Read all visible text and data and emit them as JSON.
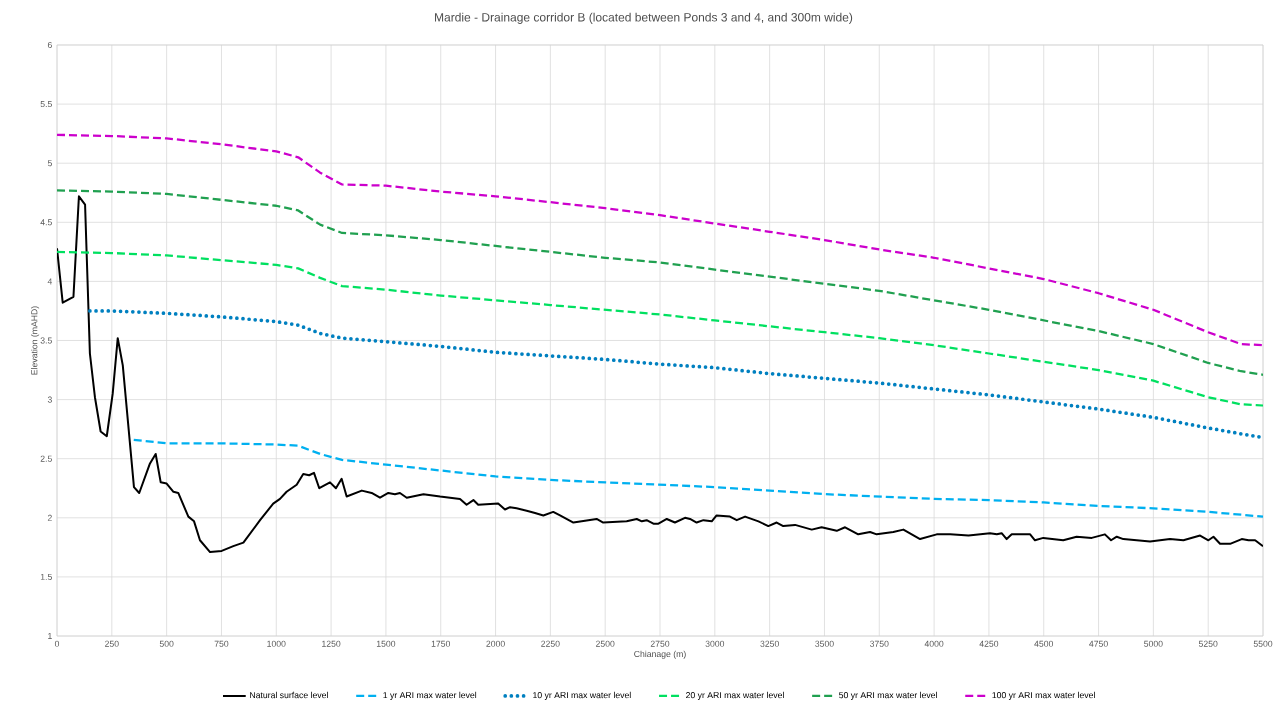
{
  "chart_data": {
    "type": "line",
    "title": "Mardie - Drainage corridor B (located between Ponds 3 and 4, and 300m wide)",
    "xlabel": "Chianage (m)",
    "ylabel": "Elevation (mAHD)",
    "xlim": [
      0,
      5500
    ],
    "ylim": [
      1,
      6
    ],
    "xticks": [
      0,
      250,
      500,
      750,
      1000,
      1250,
      1500,
      1750,
      2000,
      2250,
      2500,
      2750,
      3000,
      3250,
      3500,
      3750,
      4000,
      4250,
      4500,
      4750,
      5000,
      5250,
      5500
    ],
    "yticks": [
      1,
      1.5,
      2,
      2.5,
      3,
      3.5,
      4,
      4.5,
      5,
      5.5,
      6
    ],
    "grid": true,
    "legend": "bottom",
    "marker": "none",
    "series": [
      {
        "name": "Natural surface level",
        "color": "#000000",
        "line_style": "solid",
        "x": [
          0,
          26,
          75,
          100,
          128,
          150,
          173,
          199,
          227,
          254,
          277,
          300,
          351,
          375,
          424,
          450,
          473,
          500,
          531,
          553,
          599,
          625,
          652,
          698,
          751,
          804,
          850,
          926,
          986,
          1017,
          1047,
          1093,
          1123,
          1150,
          1172,
          1196,
          1245,
          1272,
          1298,
          1321,
          1390,
          1435,
          1473,
          1511,
          1541,
          1564,
          1595,
          1671,
          1747,
          1838,
          1868,
          1899,
          1921,
          2012,
          2043,
          2066,
          2096,
          2142,
          2180,
          2218,
          2263,
          2294,
          2355,
          2461,
          2491,
          2598,
          2644,
          2667,
          2689,
          2720,
          2743,
          2781,
          2818,
          2864,
          2887,
          2917,
          2948,
          2986,
          3008,
          3069,
          3100,
          3138,
          3199,
          3244,
          3282,
          3312,
          3366,
          3442,
          3487,
          3556,
          3594,
          3654,
          3708,
          3738,
          3814,
          3860,
          3936,
          4012,
          4073,
          4157,
          4255,
          4286,
          4308,
          4331,
          4354,
          4438,
          4460,
          4498,
          4589,
          4650,
          4719,
          4779,
          4807,
          4833,
          4863,
          4985,
          5076,
          5137,
          5213,
          5251,
          5274,
          5304,
          5350,
          5403,
          5434,
          5464,
          5500
        ],
        "values": [
          4.28,
          3.82,
          3.87,
          4.72,
          4.65,
          3.39,
          3.02,
          2.73,
          2.69,
          3.05,
          3.52,
          3.29,
          2.26,
          2.21,
          2.46,
          2.54,
          2.3,
          2.29,
          2.22,
          2.21,
          2.01,
          1.97,
          1.81,
          1.71,
          1.72,
          1.76,
          1.79,
          1.98,
          2.12,
          2.16,
          2.22,
          2.28,
          2.37,
          2.36,
          2.38,
          2.25,
          2.3,
          2.25,
          2.33,
          2.18,
          2.23,
          2.21,
          2.17,
          2.21,
          2.2,
          2.21,
          2.17,
          2.2,
          2.18,
          2.16,
          2.11,
          2.15,
          2.11,
          2.12,
          2.07,
          2.09,
          2.08,
          2.06,
          2.04,
          2.02,
          2.05,
          2.02,
          1.96,
          1.99,
          1.96,
          1.97,
          1.99,
          1.97,
          1.98,
          1.95,
          1.95,
          1.99,
          1.96,
          2.0,
          1.99,
          1.96,
          1.98,
          1.97,
          2.02,
          2.01,
          1.98,
          2.01,
          1.97,
          1.93,
          1.96,
          1.93,
          1.94,
          1.9,
          1.92,
          1.89,
          1.92,
          1.86,
          1.88,
          1.86,
          1.88,
          1.9,
          1.82,
          1.86,
          1.86,
          1.85,
          1.87,
          1.86,
          1.87,
          1.82,
          1.86,
          1.86,
          1.81,
          1.83,
          1.81,
          1.84,
          1.83,
          1.86,
          1.81,
          1.84,
          1.82,
          1.8,
          1.82,
          1.81,
          1.85,
          1.81,
          1.84,
          1.78,
          1.78,
          1.82,
          1.81,
          1.81,
          1.76
        ]
      },
      {
        "name": "1 yr ARI max water level",
        "color": "#00b0f0",
        "line_style": "dashed",
        "x": [
          350,
          500,
          750,
          1000,
          1100,
          1200,
          1300,
          1500,
          1750,
          2000,
          2250,
          2500,
          2750,
          3000,
          3250,
          3500,
          3750,
          4000,
          4250,
          4500,
          4750,
          5000,
          5250,
          5500
        ],
        "values": [
          2.66,
          2.63,
          2.63,
          2.62,
          2.61,
          2.54,
          2.49,
          2.45,
          2.4,
          2.35,
          2.32,
          2.3,
          2.28,
          2.26,
          2.23,
          2.2,
          2.18,
          2.16,
          2.15,
          2.13,
          2.1,
          2.08,
          2.05,
          2.01
        ]
      },
      {
        "name": "10 yr ARI max water level",
        "color": "#0080c0",
        "line_style": "dotted",
        "x": [
          150,
          250,
          500,
          750,
          1000,
          1100,
          1200,
          1300,
          1500,
          1750,
          2000,
          2250,
          2500,
          2750,
          3000,
          3250,
          3500,
          3750,
          4000,
          4250,
          4500,
          4750,
          5000,
          5250,
          5400,
          5500
        ],
        "values": [
          3.75,
          3.75,
          3.73,
          3.7,
          3.66,
          3.63,
          3.56,
          3.52,
          3.49,
          3.45,
          3.4,
          3.37,
          3.34,
          3.3,
          3.27,
          3.22,
          3.18,
          3.14,
          3.09,
          3.04,
          2.98,
          2.92,
          2.85,
          2.76,
          2.71,
          2.68
        ]
      },
      {
        "name": "20 yr ARI max water level",
        "color": "#00e060",
        "line_style": "dashed",
        "x": [
          0,
          250,
          500,
          750,
          1000,
          1100,
          1200,
          1300,
          1500,
          1750,
          2000,
          2250,
          2500,
          2750,
          3000,
          3250,
          3500,
          3750,
          4000,
          4250,
          4500,
          4750,
          5000,
          5250,
          5400,
          5500
        ],
        "values": [
          4.25,
          4.24,
          4.22,
          4.18,
          4.14,
          4.11,
          4.03,
          3.96,
          3.93,
          3.88,
          3.84,
          3.8,
          3.76,
          3.72,
          3.67,
          3.62,
          3.57,
          3.52,
          3.46,
          3.39,
          3.32,
          3.25,
          3.16,
          3.02,
          2.96,
          2.95
        ]
      },
      {
        "name": "50 yr ARI max water level",
        "color": "#20a050",
        "line_style": "dashed",
        "x": [
          0,
          250,
          500,
          750,
          1000,
          1100,
          1200,
          1300,
          1500,
          1750,
          2000,
          2250,
          2500,
          2750,
          3000,
          3250,
          3500,
          3750,
          4000,
          4250,
          4500,
          4750,
          5000,
          5250,
          5400,
          5500
        ],
        "values": [
          4.77,
          4.76,
          4.74,
          4.69,
          4.64,
          4.6,
          4.48,
          4.41,
          4.39,
          4.35,
          4.3,
          4.25,
          4.2,
          4.16,
          4.1,
          4.04,
          3.98,
          3.92,
          3.84,
          3.76,
          3.67,
          3.58,
          3.47,
          3.31,
          3.24,
          3.21
        ]
      },
      {
        "name": "100 yr ARI max water level",
        "color": "#cc00cc",
        "line_style": "dashed",
        "x": [
          0,
          250,
          500,
          750,
          1000,
          1100,
          1200,
          1300,
          1500,
          1750,
          2000,
          2250,
          2500,
          2750,
          3000,
          3250,
          3500,
          3750,
          4000,
          4250,
          4500,
          4750,
          5000,
          5250,
          5400,
          5500
        ],
        "values": [
          5.24,
          5.23,
          5.21,
          5.16,
          5.1,
          5.05,
          4.92,
          4.82,
          4.81,
          4.76,
          4.72,
          4.67,
          4.62,
          4.56,
          4.49,
          4.42,
          4.35,
          4.27,
          4.2,
          4.11,
          4.02,
          3.9,
          3.76,
          3.57,
          3.47,
          3.46
        ]
      }
    ]
  }
}
